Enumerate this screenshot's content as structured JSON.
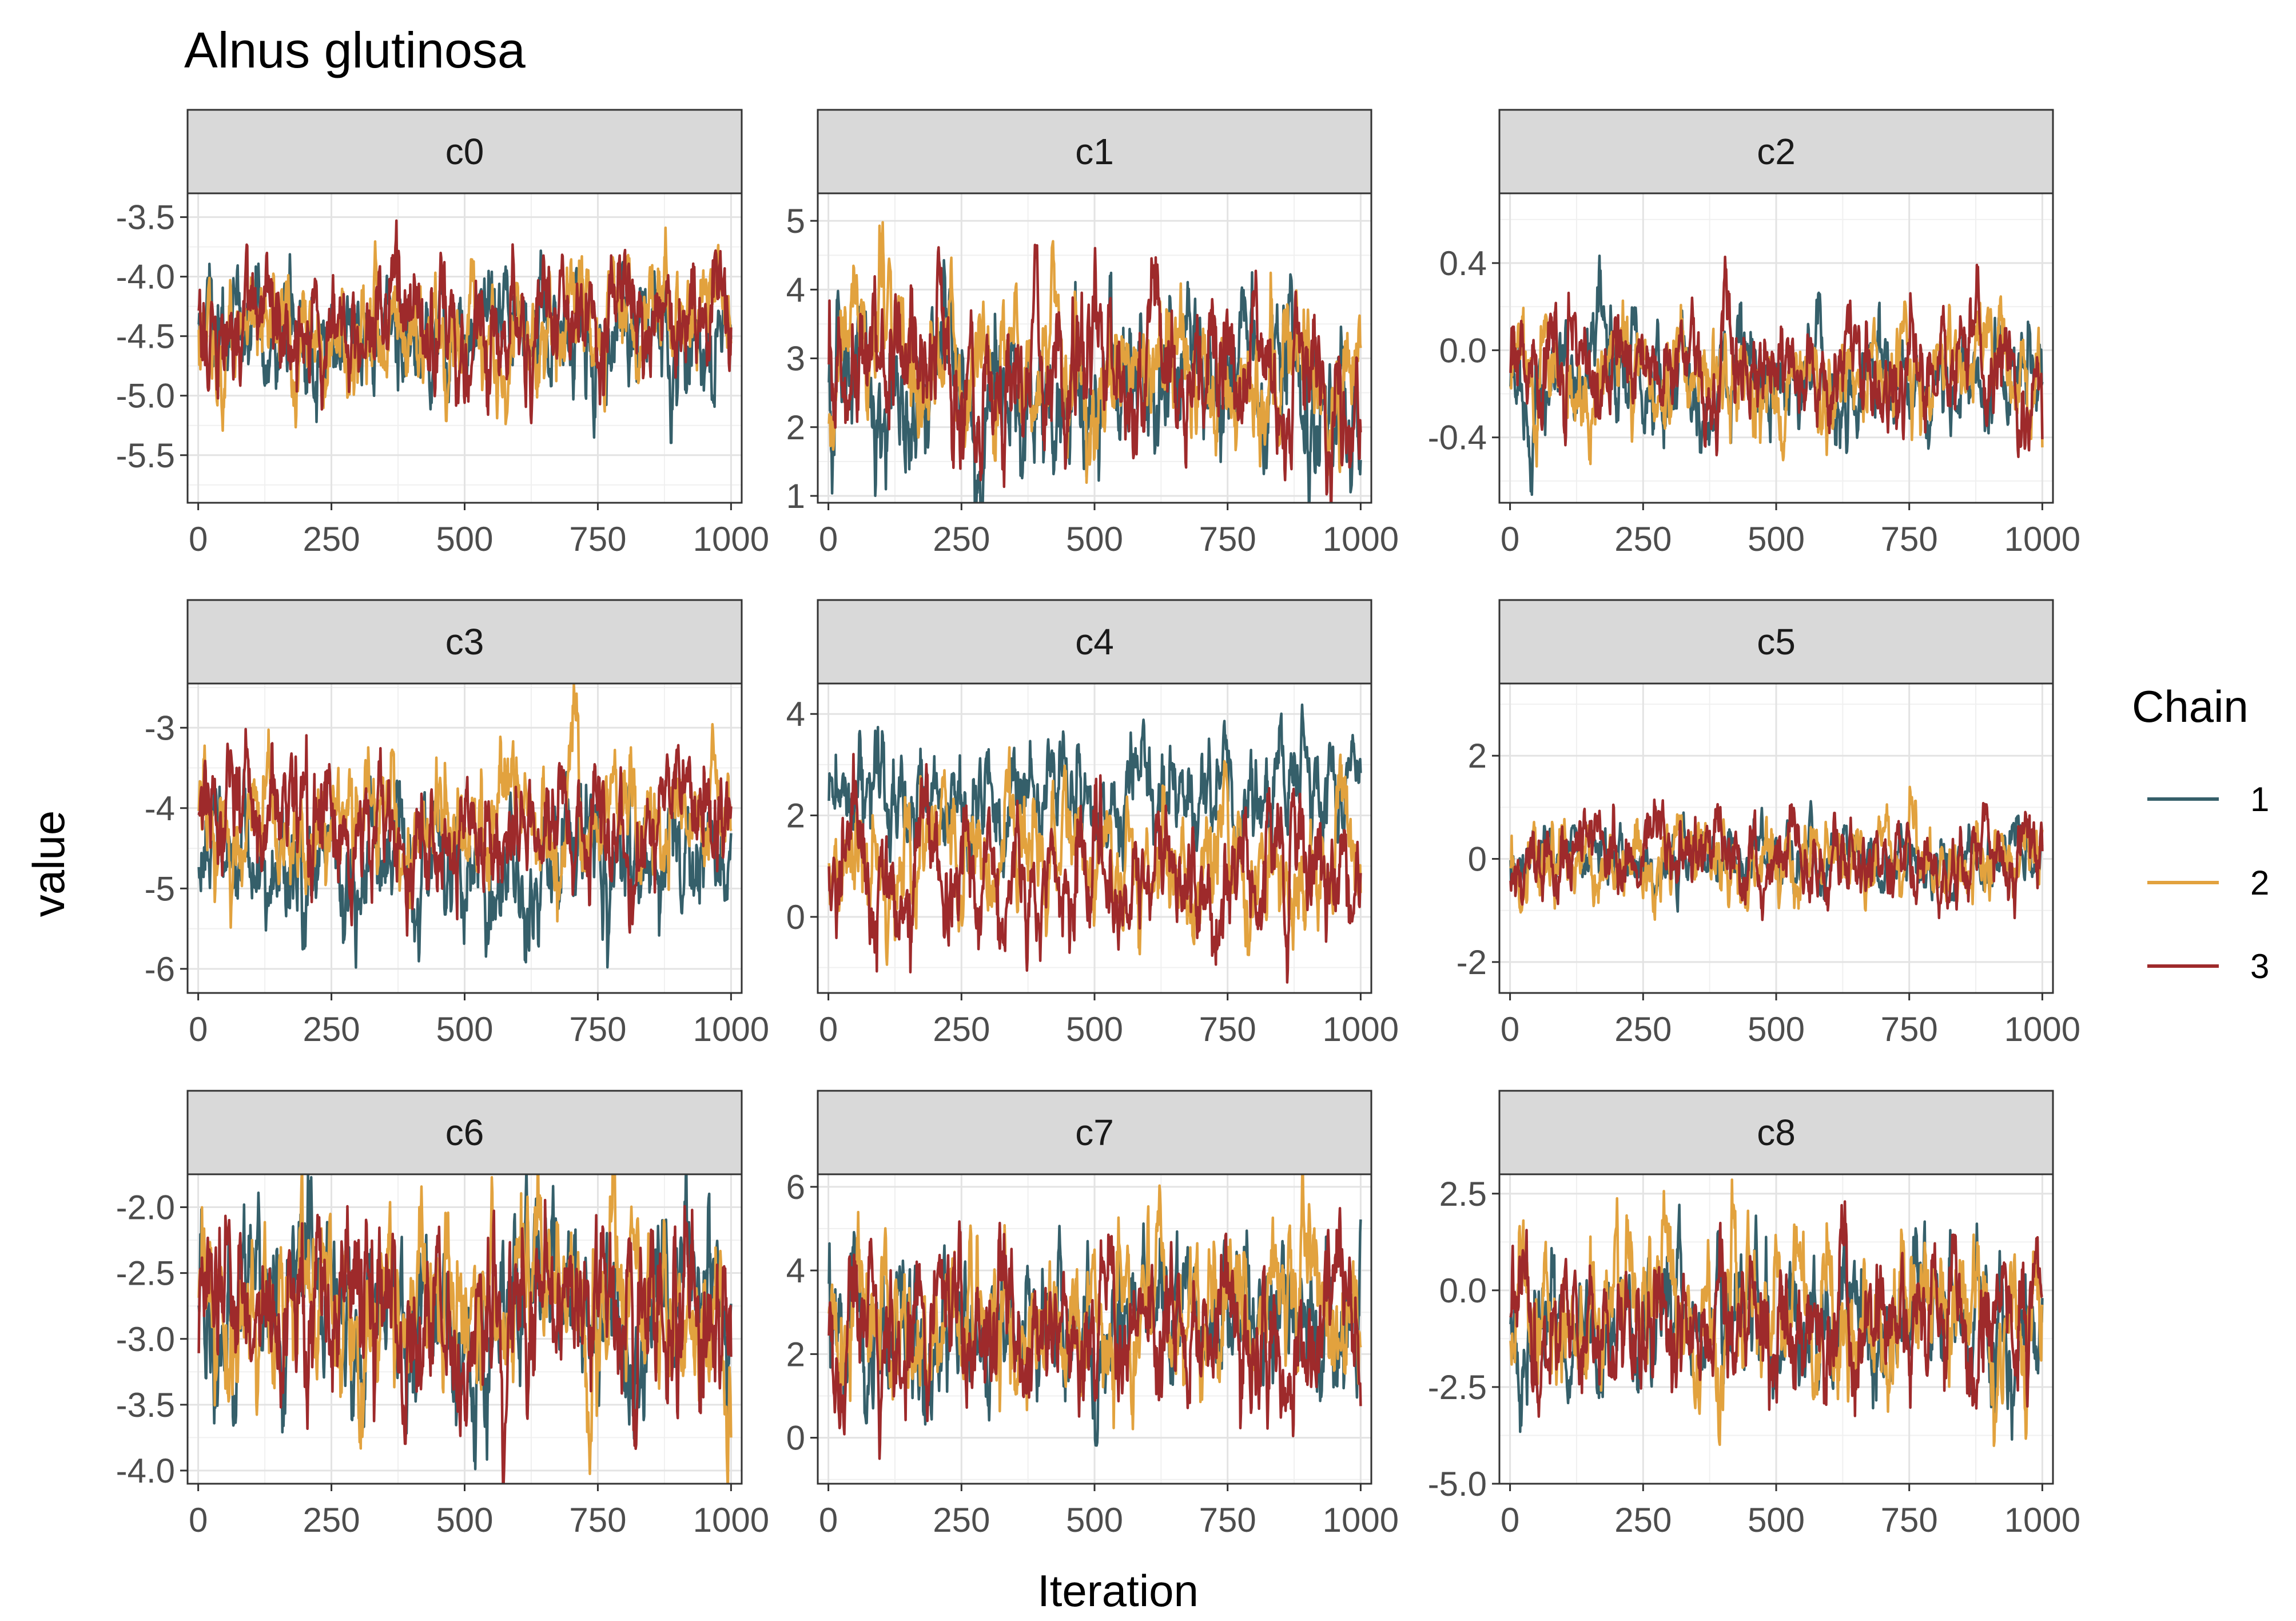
{
  "chart_data": {
    "type": "line",
    "title": "Alnus glutinosa",
    "xlabel": "Iteration",
    "ylabel": "value",
    "grid": true,
    "legend": {
      "title": "Chain",
      "placement": "right",
      "entries": [
        {
          "label": "1",
          "color": "#355f6a"
        },
        {
          "label": "2",
          "color": "#e2a23e"
        },
        {
          "label": "3",
          "color": "#9e2a2b"
        }
      ]
    },
    "x_ticks": [
      "0",
      "250",
      "500",
      "750",
      "1000"
    ],
    "xlim": [
      -20,
      1020
    ],
    "iterations": 1000,
    "panels": [
      {
        "strip": "c0",
        "ylim": [
          -5.9,
          -3.3
        ],
        "y_ticks": [
          -3.5,
          -4.0,
          -4.5,
          -5.0,
          -5.5
        ],
        "y_labels": [
          "-3.5",
          "-4.0",
          "-4.5",
          "-5.0",
          "-5.5"
        ],
        "series": [
          {
            "name": "1",
            "mean": -4.45,
            "sd": 0.3
          },
          {
            "name": "2",
            "mean": -4.45,
            "sd": 0.3
          },
          {
            "name": "3",
            "mean": -4.4,
            "sd": 0.3
          }
        ]
      },
      {
        "strip": "c1",
        "ylim": [
          0.9,
          5.4
        ],
        "y_ticks": [
          1,
          2,
          3,
          4,
          5
        ],
        "y_labels": [
          "1",
          "2",
          "3",
          "4",
          "5"
        ],
        "series": [
          {
            "name": "1",
            "mean": 2.6,
            "sd": 0.65
          },
          {
            "name": "2",
            "mean": 2.95,
            "sd": 0.6
          },
          {
            "name": "3",
            "mean": 2.8,
            "sd": 0.6
          }
        ]
      },
      {
        "strip": "c2",
        "ylim": [
          -0.7,
          0.72
        ],
        "y_ticks": [
          0.4,
          0.0,
          -0.4
        ],
        "y_labels": [
          "0.4",
          "0.0",
          "-0.4"
        ],
        "series": [
          {
            "name": "1",
            "mean": -0.12,
            "sd": 0.14
          },
          {
            "name": "2",
            "mean": -0.13,
            "sd": 0.14
          },
          {
            "name": "3",
            "mean": -0.1,
            "sd": 0.14
          }
        ]
      },
      {
        "strip": "c3",
        "ylim": [
          -6.3,
          -2.45
        ],
        "y_ticks": [
          -3,
          -4,
          -5,
          -6
        ],
        "y_labels": [
          "-3",
          "-4",
          "-5",
          "-6"
        ],
        "series": [
          {
            "name": "1",
            "mean": -4.85,
            "sd": 0.45
          },
          {
            "name": "2",
            "mean": -4.1,
            "sd": 0.45
          },
          {
            "name": "3",
            "mean": -4.2,
            "sd": 0.45
          }
        ]
      },
      {
        "strip": "c4",
        "ylim": [
          -1.5,
          4.6
        ],
        "y_ticks": [
          4,
          2,
          0
        ],
        "y_labels": [
          "4",
          "2",
          "0"
        ],
        "series": [
          {
            "name": "1",
            "mean": 2.4,
            "sd": 0.6
          },
          {
            "name": "2",
            "mean": 1.0,
            "sd": 0.7
          },
          {
            "name": "3",
            "mean": 0.9,
            "sd": 0.7
          }
        ]
      },
      {
        "strip": "c5",
        "ylim": [
          -2.6,
          3.4
        ],
        "y_ticks": [
          2,
          0,
          -2
        ],
        "y_labels": [
          "2",
          "0",
          "-2"
        ],
        "series": [
          {
            "name": "1",
            "mean": 0.05,
            "sd": 0.35
          },
          {
            "name": "2",
            "mean": 0.05,
            "sd": 0.45
          },
          {
            "name": "3",
            "mean": 0.05,
            "sd": 0.45
          }
        ]
      },
      {
        "strip": "c6",
        "ylim": [
          -4.1,
          -1.75
        ],
        "y_ticks": [
          -2.0,
          -2.5,
          -3.0,
          -3.5,
          -4.0
        ],
        "y_labels": [
          "-2.0",
          "-2.5",
          "-3.0",
          "-3.5",
          "-4.0"
        ],
        "series": [
          {
            "name": "1",
            "mean": -2.8,
            "sd": 0.38
          },
          {
            "name": "2",
            "mean": -2.75,
            "sd": 0.38
          },
          {
            "name": "3",
            "mean": -2.75,
            "sd": 0.38
          }
        ]
      },
      {
        "strip": "c7",
        "ylim": [
          -1.1,
          6.3
        ],
        "y_ticks": [
          6,
          4,
          2,
          0
        ],
        "y_labels": [
          "6",
          "4",
          "2",
          "0"
        ],
        "series": [
          {
            "name": "1",
            "mean": 2.7,
            "sd": 1.0
          },
          {
            "name": "2",
            "mean": 2.8,
            "sd": 1.05
          },
          {
            "name": "3",
            "mean": 2.75,
            "sd": 1.0
          }
        ]
      },
      {
        "strip": "c8",
        "ylim": [
          -5.0,
          3.0
        ],
        "y_ticks": [
          2.5,
          0.0,
          -2.5,
          -5.0
        ],
        "y_labels": [
          "2.5",
          "0.0",
          "-2.5",
          "-5.0"
        ],
        "series": [
          {
            "name": "1",
            "mean": -0.9,
            "sd": 1.0
          },
          {
            "name": "2",
            "mean": -0.8,
            "sd": 1.05
          },
          {
            "name": "3",
            "mean": -0.9,
            "sd": 1.0
          }
        ]
      }
    ]
  }
}
